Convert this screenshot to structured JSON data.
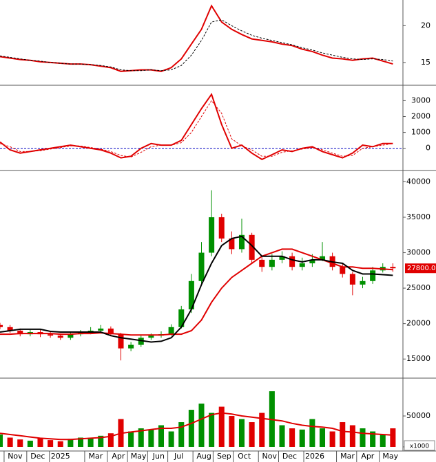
{
  "chart_data": [
    {
      "type": "line",
      "x": [
        0,
        2,
        4,
        6,
        8,
        10,
        12,
        14,
        16,
        18,
        20,
        22,
        24,
        26,
        28,
        30,
        32,
        34,
        36,
        38,
        40,
        42,
        44,
        46,
        48,
        50,
        52,
        54,
        56,
        58,
        60,
        62,
        64,
        66,
        68,
        70,
        72,
        74,
        76,
        78
      ],
      "xlim": [
        0,
        80
      ],
      "ylim": [
        12.1,
        23.3
      ],
      "yticks": [
        20,
        15
      ],
      "series": [
        {
          "color": "#e00000",
          "style": "solid",
          "values": [
            15.8,
            15.6,
            15.4,
            15.3,
            15.1,
            15.0,
            14.9,
            14.8,
            14.8,
            14.7,
            14.5,
            14.3,
            13.8,
            13.9,
            14.0,
            14.0,
            13.8,
            14.3,
            15.5,
            17.5,
            19.5,
            22.7,
            20.5,
            19.5,
            18.8,
            18.2,
            18.0,
            17.8,
            17.5,
            17.3,
            16.8,
            16.5,
            16.0,
            15.6,
            15.5,
            15.3,
            15.5,
            15.6,
            15.2,
            14.8
          ]
        },
        {
          "color": "#000000",
          "style": "dashed",
          "values": [
            15.9,
            15.7,
            15.5,
            15.3,
            15.2,
            15.0,
            14.9,
            14.8,
            14.8,
            14.7,
            14.6,
            14.4,
            14.0,
            13.9,
            13.9,
            14.0,
            13.9,
            14.0,
            14.6,
            16.0,
            18.0,
            20.5,
            20.8,
            20.0,
            19.3,
            18.7,
            18.3,
            18.0,
            17.7,
            17.4,
            17.0,
            16.7,
            16.3,
            16.0,
            15.7,
            15.5,
            15.4,
            15.5,
            15.4,
            15.2
          ]
        }
      ]
    },
    {
      "type": "line",
      "x": [
        0,
        2,
        4,
        6,
        8,
        10,
        12,
        14,
        16,
        18,
        20,
        22,
        24,
        26,
        28,
        30,
        32,
        34,
        36,
        38,
        40,
        42,
        44,
        46,
        48,
        50,
        52,
        54,
        56,
        58,
        60,
        62,
        64,
        66,
        68,
        70,
        72,
        74,
        76,
        78
      ],
      "xlim": [
        0,
        80
      ],
      "ylim": [
        -1310,
        3840
      ],
      "yticks": [
        3000,
        2000,
        1000,
        0
      ],
      "zero_line_color": "#0000c0",
      "series": [
        {
          "color": "#e00000",
          "style": "solid",
          "values": [
            400,
            -100,
            -300,
            -200,
            -100,
            0,
            100,
            200,
            100,
            0,
            -100,
            -300,
            -600,
            -500,
            0,
            300,
            200,
            200,
            500,
            1500,
            2500,
            3400,
            1500,
            0,
            200,
            -300,
            -700,
            -400,
            -100,
            -200,
            0,
            100,
            -200,
            -400,
            -600,
            -300,
            200,
            100,
            300,
            300
          ]
        },
        {
          "color": "#e00000",
          "style": "dashed",
          "values": [
            300,
            100,
            -200,
            -200,
            -150,
            -50,
            50,
            150,
            150,
            50,
            -50,
            -200,
            -450,
            -550,
            -250,
            100,
            200,
            200,
            350,
            1000,
            2000,
            3000,
            2200,
            600,
            150,
            -100,
            -500,
            -500,
            -250,
            -150,
            -50,
            50,
            -100,
            -300,
            -500,
            -450,
            0,
            100,
            200,
            300
          ]
        }
      ]
    },
    {
      "type": "candlestick",
      "x": [
        0,
        2,
        4,
        6,
        8,
        10,
        12,
        14,
        16,
        18,
        20,
        22,
        24,
        26,
        28,
        30,
        32,
        34,
        36,
        38,
        40,
        42,
        44,
        46,
        48,
        50,
        52,
        54,
        56,
        58,
        60,
        62,
        64,
        66,
        68,
        70,
        72,
        74,
        76,
        78
      ],
      "xlim": [
        0,
        80
      ],
      "ylim": [
        12500,
        41400
      ],
      "yticks": [
        40000,
        35000,
        30000,
        25000,
        20000,
        15000
      ],
      "up_color": "#009000",
      "down_color": "#e00000",
      "last_label": "27800.00",
      "open": [
        19800,
        19500,
        19000,
        18500,
        18800,
        18500,
        18300,
        18000,
        18500,
        18800,
        19000,
        19300,
        18500,
        16500,
        17000,
        18000,
        18300,
        18500,
        19500,
        22000,
        26000,
        30000,
        35000,
        32000,
        30500,
        32500,
        29000,
        28000,
        29000,
        29500,
        28000,
        28500,
        29000,
        29500,
        28000,
        27000,
        25500,
        26000,
        27500,
        28000
      ],
      "high": [
        20100,
        19800,
        19300,
        19100,
        19100,
        18800,
        18600,
        18800,
        19100,
        19500,
        19800,
        19600,
        18700,
        17400,
        18300,
        18600,
        18900,
        19900,
        22500,
        27000,
        31500,
        38800,
        35500,
        33000,
        34800,
        32800,
        29500,
        29800,
        30200,
        30000,
        29300,
        29800,
        31500,
        30000,
        28500,
        27300,
        26600,
        28000,
        28500,
        28500
      ],
      "low": [
        19200,
        18700,
        18200,
        18200,
        18100,
        18000,
        17700,
        17700,
        18200,
        18500,
        18700,
        18200,
        14800,
        16100,
        16700,
        17700,
        18000,
        18300,
        19300,
        21500,
        25500,
        29500,
        31500,
        29800,
        30000,
        28500,
        27300,
        27500,
        28500,
        27500,
        27500,
        28000,
        28800,
        27500,
        26500,
        24000,
        25000,
        25600,
        27200,
        27300
      ],
      "close": [
        19500,
        19000,
        18500,
        18800,
        18500,
        18300,
        18000,
        18500,
        18800,
        19000,
        19300,
        18500,
        16500,
        17000,
        18000,
        18300,
        18500,
        19500,
        22000,
        26000,
        30000,
        35000,
        32000,
        30500,
        32500,
        29000,
        28000,
        29000,
        29500,
        28000,
        28500,
        29000,
        29500,
        28000,
        27000,
        25500,
        26000,
        27500,
        28000,
        27800
      ],
      "series": [
        {
          "color": "#e00000",
          "style": "solid",
          "values": [
            18500,
            18500,
            18600,
            18600,
            18600,
            18600,
            18500,
            18500,
            18600,
            18600,
            18700,
            18600,
            18500,
            18400,
            18400,
            18400,
            18400,
            18500,
            18500,
            19000,
            20500,
            23000,
            25000,
            26500,
            27500,
            28500,
            29500,
            30000,
            30500,
            30500,
            30000,
            29500,
            29000,
            28500,
            28000,
            28000,
            27800,
            27800,
            27700,
            27600
          ]
        },
        {
          "color": "#000000",
          "style": "solid",
          "values": [
            18800,
            19000,
            19200,
            19200,
            19200,
            18900,
            18800,
            18800,
            18800,
            18800,
            18800,
            18300,
            18000,
            17800,
            17600,
            17400,
            17500,
            18000,
            19500,
            22000,
            25500,
            28500,
            31000,
            32000,
            32300,
            31000,
            29500,
            29500,
            29500,
            29000,
            28700,
            29000,
            29000,
            28700,
            28500,
            27500,
            27000,
            27000,
            26900,
            26800
          ]
        }
      ]
    },
    {
      "type": "bar",
      "x": [
        0,
        2,
        4,
        6,
        8,
        10,
        12,
        14,
        16,
        18,
        20,
        22,
        24,
        26,
        28,
        30,
        32,
        34,
        36,
        38,
        40,
        42,
        44,
        46,
        48,
        50,
        52,
        54,
        56,
        58,
        60,
        62,
        64,
        66,
        68,
        70,
        72,
        74,
        76,
        78
      ],
      "xlim": [
        0,
        80
      ],
      "ylim": [
        0,
        109000
      ],
      "yticks": [
        50000,
        0
      ],
      "unit_label": "x1000",
      "up_color": "#009000",
      "down_color": "#e00000",
      "values": [
        20000,
        15000,
        12000,
        10000,
        14000,
        11000,
        9000,
        13000,
        15000,
        14000,
        18000,
        22000,
        45000,
        25000,
        30000,
        28000,
        35000,
        25000,
        40000,
        60000,
        70000,
        55000,
        65000,
        50000,
        45000,
        40000,
        55000,
        90000,
        35000,
        30000,
        28000,
        45000,
        30000,
        25000,
        40000,
        35000,
        30000,
        25000,
        20000,
        30000
      ],
      "series": [
        {
          "color": "#e00000",
          "style": "solid",
          "values": [
            22000,
            20000,
            18000,
            16000,
            14000,
            13000,
            12000,
            12000,
            13000,
            14000,
            15000,
            17000,
            22000,
            24000,
            26000,
            28000,
            30000,
            30000,
            32000,
            38000,
            45000,
            52000,
            55000,
            53000,
            50000,
            48000,
            46000,
            44000,
            42000,
            38000,
            35000,
            33000,
            32000,
            30000,
            25000,
            24000,
            22000,
            21000,
            20000,
            19000
          ]
        }
      ],
      "xticks": [
        {
          "value": 3,
          "label": "Nov"
        },
        {
          "value": 7.5,
          "label": "Dec"
        },
        {
          "value": 12,
          "label": "2025"
        },
        {
          "value": 19,
          "label": "Mar"
        },
        {
          "value": 23.5,
          "label": "Apr"
        },
        {
          "value": 27.5,
          "label": "May"
        },
        {
          "value": 31.5,
          "label": "Jun"
        },
        {
          "value": 35.5,
          "label": "Jul"
        },
        {
          "value": 40.5,
          "label": "Aug"
        },
        {
          "value": 44.5,
          "label": "Sep"
        },
        {
          "value": 48.5,
          "label": "Oct"
        },
        {
          "value": 53.5,
          "label": "Nov"
        },
        {
          "value": 57.5,
          "label": "Dec"
        },
        {
          "value": 62.5,
          "label": "2026"
        },
        {
          "value": 69,
          "label": "Mar"
        },
        {
          "value": 73,
          "label": "Apr"
        },
        {
          "value": 77.5,
          "label": "May"
        }
      ]
    }
  ]
}
